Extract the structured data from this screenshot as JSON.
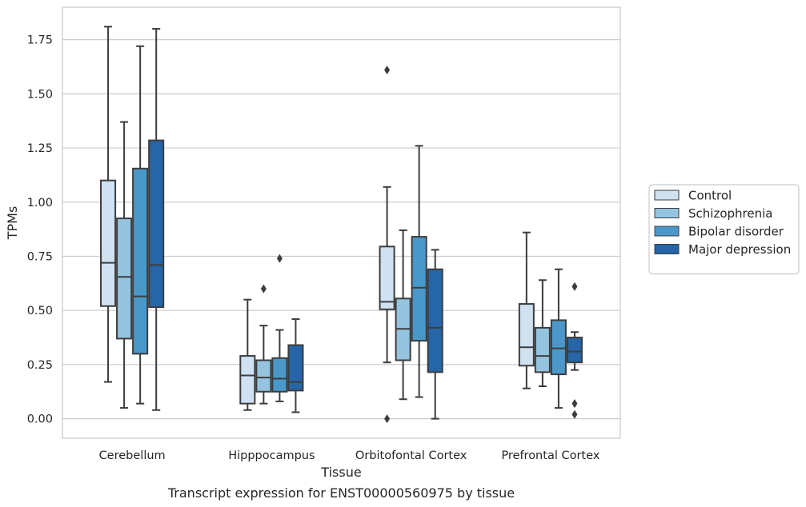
{
  "chart_data": {
    "type": "box",
    "title": "",
    "caption": "Transcript expression for ENST00000560975 by tissue",
    "xlabel": "Tissue",
    "ylabel": "TPMs",
    "ylim": [
      -0.09,
      1.9
    ],
    "yticks": [
      "0.00",
      "0.25",
      "0.50",
      "0.75",
      "1.00",
      "1.25",
      "1.50",
      "1.75"
    ],
    "ytick_values": [
      0,
      0.25,
      0.5,
      0.75,
      1.0,
      1.25,
      1.5,
      1.75
    ],
    "grid": true,
    "legend_position": "right",
    "categories": [
      "Cerebellum",
      "Hipppocampus",
      "Orbitofontal Cortex",
      "Prefrontal Cortex"
    ],
    "series": [
      {
        "name": "Control",
        "color": "#d0e1f2",
        "boxes": [
          {
            "whislo": 0.17,
            "q1": 0.52,
            "med": 0.72,
            "q3": 1.1,
            "whishi": 1.81,
            "fliers": []
          },
          {
            "whislo": 0.04,
            "q1": 0.07,
            "med": 0.2,
            "q3": 0.29,
            "whishi": 0.55,
            "fliers": []
          },
          {
            "whislo": 0.26,
            "q1": 0.505,
            "med": 0.54,
            "q3": 0.795,
            "whishi": 1.07,
            "fliers": [
              1.61,
              0.0
            ]
          },
          {
            "whislo": 0.14,
            "q1": 0.245,
            "med": 0.33,
            "q3": 0.53,
            "whishi": 0.86,
            "fliers": []
          }
        ]
      },
      {
        "name": "Schizophrenia",
        "color": "#94c4df",
        "boxes": [
          {
            "whislo": 0.05,
            "q1": 0.37,
            "med": 0.655,
            "q3": 0.925,
            "whishi": 1.37,
            "fliers": []
          },
          {
            "whislo": 0.07,
            "q1": 0.125,
            "med": 0.19,
            "q3": 0.27,
            "whishi": 0.43,
            "fliers": [
              0.6
            ]
          },
          {
            "whislo": 0.09,
            "q1": 0.27,
            "med": 0.415,
            "q3": 0.555,
            "whishi": 0.87,
            "fliers": []
          },
          {
            "whislo": 0.15,
            "q1": 0.215,
            "med": 0.29,
            "q3": 0.42,
            "whishi": 0.64,
            "fliers": []
          }
        ]
      },
      {
        "name": "Bipolar disorder",
        "color": "#4a98c9",
        "boxes": [
          {
            "whislo": 0.07,
            "q1": 0.3,
            "med": 0.565,
            "q3": 1.155,
            "whishi": 1.72,
            "fliers": []
          },
          {
            "whislo": 0.08,
            "q1": 0.125,
            "med": 0.185,
            "q3": 0.28,
            "whishi": 0.41,
            "fliers": [
              0.74
            ]
          },
          {
            "whislo": 0.1,
            "q1": 0.36,
            "med": 0.605,
            "q3": 0.84,
            "whishi": 1.26,
            "fliers": []
          },
          {
            "whislo": 0.05,
            "q1": 0.205,
            "med": 0.325,
            "q3": 0.455,
            "whishi": 0.69,
            "fliers": []
          }
        ]
      },
      {
        "name": "Major depression",
        "color": "#2565a8",
        "boxes": [
          {
            "whislo": 0.04,
            "q1": 0.515,
            "med": 0.71,
            "q3": 1.285,
            "whishi": 1.8,
            "fliers": []
          },
          {
            "whislo": 0.03,
            "q1": 0.13,
            "med": 0.17,
            "q3": 0.34,
            "whishi": 0.46,
            "fliers": []
          },
          {
            "whislo": 0.0,
            "q1": 0.215,
            "med": 0.42,
            "q3": 0.69,
            "whishi": 0.78,
            "fliers": []
          },
          {
            "whislo": 0.225,
            "q1": 0.26,
            "med": 0.31,
            "q3": 0.375,
            "whishi": 0.4,
            "fliers": [
              0.61,
              0.07,
              0.02
            ]
          }
        ]
      }
    ]
  }
}
